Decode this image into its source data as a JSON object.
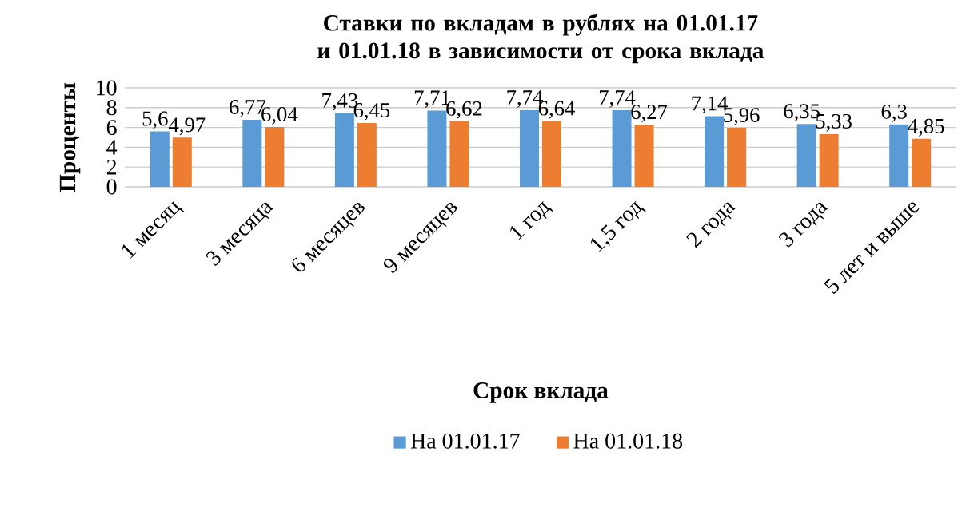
{
  "chart_data": {
    "type": "bar",
    "title": "Ставки по вкладам в рублях на 01.01.17 и 01.01.18 в зависимости от срока вклада",
    "xlabel": "Срок вклада",
    "ylabel": "Проценты",
    "categories": [
      "1 месяц",
      "3 месяца",
      "6 месяцев",
      "9 месяцев",
      "1 год",
      "1,5 год",
      "2 года",
      "3 года",
      "5 лет и выше"
    ],
    "series": [
      {
        "name": "На 01.01.17",
        "color": "#5b9bd5",
        "values": [
          5.6,
          6.77,
          7.43,
          7.71,
          7.74,
          7.74,
          7.14,
          6.35,
          6.3
        ],
        "value_labels": [
          "5,6",
          "6,77",
          "7,43",
          "7,71",
          "7,74",
          "7,74",
          "7,14",
          "6,35",
          "6,3"
        ]
      },
      {
        "name": "На 01.01.18",
        "color": "#ed7d31",
        "values": [
          4.97,
          6.04,
          6.45,
          6.62,
          6.64,
          6.27,
          5.96,
          5.33,
          4.85
        ],
        "value_labels": [
          "4,97",
          "6,04",
          "6,45",
          "6,62",
          "6,64",
          "6,27",
          "5,96",
          "5,33",
          "4,85"
        ]
      }
    ],
    "ylim": [
      0,
      10
    ],
    "yticks": [
      0,
      2,
      4,
      6,
      8,
      10
    ],
    "grid": "y",
    "legend": "bottom"
  }
}
